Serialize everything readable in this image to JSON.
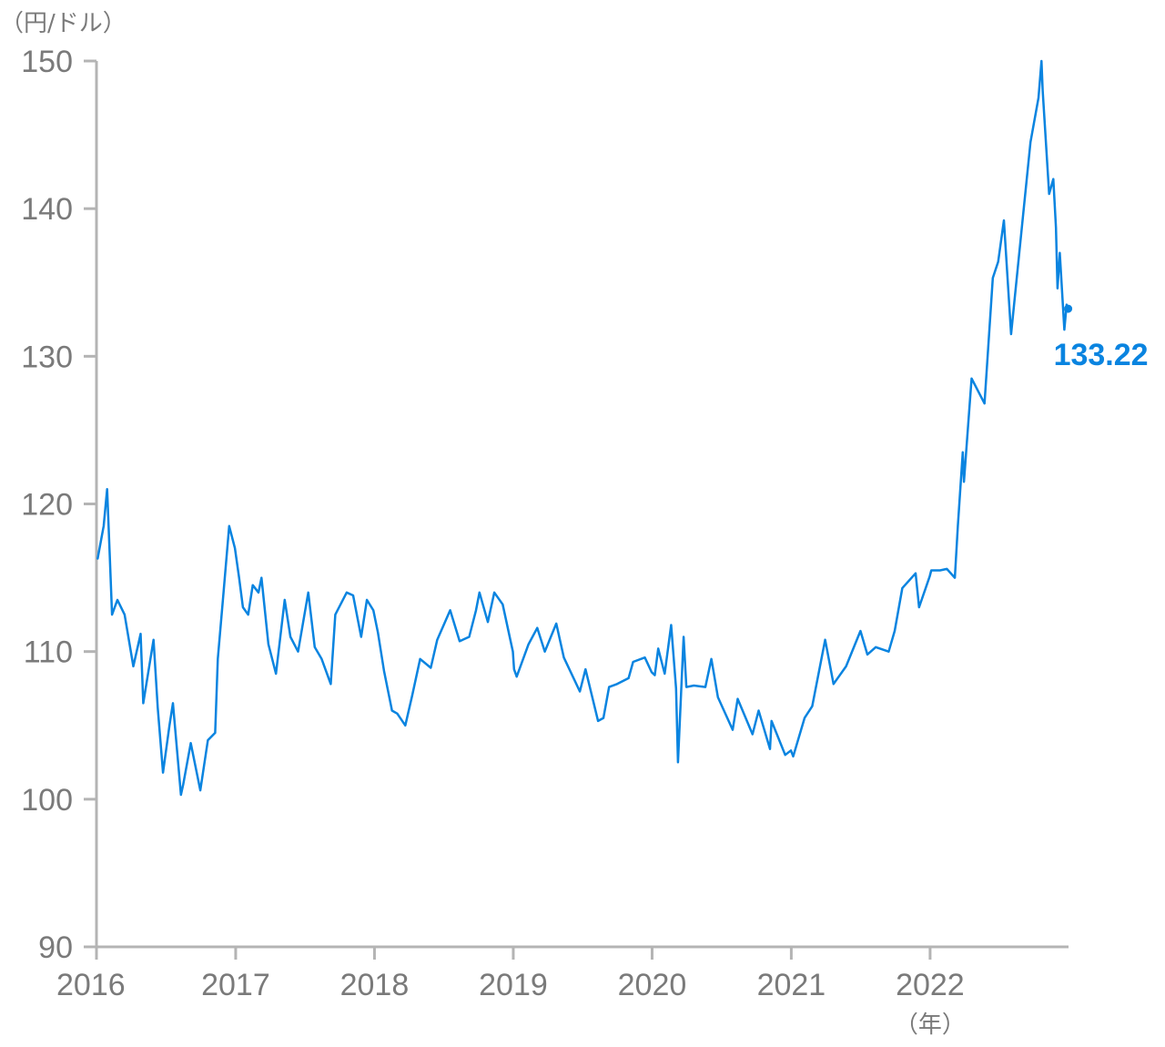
{
  "chart_data": {
    "type": "line",
    "title": "",
    "ylabel": "（円/ドル）",
    "xlabel": "（年）",
    "ylim": [
      90,
      150
    ],
    "yticks": [
      90,
      100,
      110,
      120,
      130,
      140,
      150
    ],
    "xlim": [
      "2016-01-01",
      "2022-12-31"
    ],
    "xticks": [
      {
        "date": "2016-01-01",
        "label": "2016"
      },
      {
        "date": "2017-01-01",
        "label": "2017"
      },
      {
        "date": "2018-01-01",
        "label": "2018"
      },
      {
        "date": "2019-01-01",
        "label": "2019"
      },
      {
        "date": "2020-01-01",
        "label": "2020"
      },
      {
        "date": "2021-01-01",
        "label": "2021"
      },
      {
        "date": "2022-01-01",
        "label": "2022"
      }
    ],
    "grid": false,
    "series": [
      {
        "color": "#0a84e0",
        "x": [
          "2016-01-04",
          "2016-01-20",
          "2016-01-29",
          "2016-02-05",
          "2016-02-11",
          "2016-02-25",
          "2016-03-15",
          "2016-04-07",
          "2016-04-26",
          "2016-05-03",
          "2016-05-30",
          "2016-06-10",
          "2016-06-24",
          "2016-07-11",
          "2016-07-20",
          "2016-08-10",
          "2016-08-16",
          "2016-09-05",
          "2016-09-30",
          "2016-10-20",
          "2016-11-08",
          "2016-11-15",
          "2016-11-30",
          "2016-12-15",
          "2016-12-30",
          "2017-01-10",
          "2017-01-20",
          "2017-02-03",
          "2017-02-15",
          "2017-03-02",
          "2017-03-10",
          "2017-03-28",
          "2017-04-17",
          "2017-05-10",
          "2017-05-25",
          "2017-06-14",
          "2017-07-11",
          "2017-07-28",
          "2017-08-15",
          "2017-09-08",
          "2017-09-20",
          "2017-10-20",
          "2017-11-06",
          "2017-11-27",
          "2017-12-12",
          "2017-12-29",
          "2018-01-10",
          "2018-01-26",
          "2018-02-16",
          "2018-03-02",
          "2018-03-23",
          "2018-04-10",
          "2018-05-01",
          "2018-05-29",
          "2018-06-15",
          "2018-07-19",
          "2018-08-13",
          "2018-09-07",
          "2018-09-25",
          "2018-10-04",
          "2018-10-26",
          "2018-11-12",
          "2018-12-04",
          "2018-12-31",
          "2019-01-03",
          "2019-01-10",
          "2019-02-10",
          "2019-03-05",
          "2019-03-25",
          "2019-04-24",
          "2019-05-14",
          "2019-06-25",
          "2019-07-10",
          "2019-08-12",
          "2019-08-26",
          "2019-09-10",
          "2019-10-01",
          "2019-10-31",
          "2019-11-12",
          "2019-12-13",
          "2019-12-31",
          "2020-01-08",
          "2020-01-17",
          "2020-02-03",
          "2020-02-20",
          "2020-03-04",
          "2020-03-09",
          "2020-03-24",
          "2020-03-31",
          "2020-04-20",
          "2020-05-20",
          "2020-06-05",
          "2020-06-22",
          "2020-07-31",
          "2020-08-13",
          "2020-09-21",
          "2020-10-07",
          "2020-11-06",
          "2020-11-10",
          "2020-12-16",
          "2020-12-31",
          "2021-01-06",
          "2021-02-05",
          "2021-02-25",
          "2021-03-31",
          "2021-04-22",
          "2021-05-25",
          "2021-07-02",
          "2021-07-20",
          "2021-08-11",
          "2021-09-14",
          "2021-09-30",
          "2021-10-20",
          "2021-11-24",
          "2021-12-03",
          "2021-12-31",
          "2022-01-04",
          "2022-01-27",
          "2022-02-14",
          "2022-03-07",
          "2022-03-15",
          "2022-03-28",
          "2022-03-31",
          "2022-04-20",
          "2022-05-24",
          "2022-06-15",
          "2022-06-29",
          "2022-07-14",
          "2022-08-02",
          "2022-08-31",
          "2022-09-22",
          "2022-10-13",
          "2022-10-21",
          "2022-10-24",
          "2022-11-10",
          "2022-11-21",
          "2022-11-28",
          "2022-12-02",
          "2022-12-08",
          "2022-12-20",
          "2022-12-26",
          "2022-12-30"
        ],
        "values": [
          116.3,
          118.5,
          121.0,
          116.5,
          112.5,
          113.5,
          112.5,
          109.0,
          111.2,
          106.5,
          110.8,
          106.2,
          101.8,
          105.0,
          106.5,
          100.3,
          101.0,
          103.8,
          100.6,
          104.0,
          104.5,
          109.5,
          114.0,
          118.5,
          117.0,
          115.0,
          113.0,
          112.5,
          114.5,
          114.0,
          115.0,
          110.5,
          108.5,
          113.5,
          111.0,
          110.0,
          114.0,
          110.3,
          109.5,
          107.8,
          112.5,
          114.0,
          113.8,
          111.0,
          113.5,
          112.8,
          111.3,
          108.7,
          106.0,
          105.8,
          105.0,
          107.0,
          109.5,
          108.9,
          110.8,
          112.8,
          110.7,
          111.0,
          112.8,
          114.0,
          112.0,
          114.0,
          113.2,
          110.0,
          108.8,
          108.3,
          110.5,
          111.6,
          110.0,
          111.9,
          109.6,
          107.3,
          108.8,
          105.3,
          105.5,
          107.6,
          107.8,
          108.2,
          109.3,
          109.6,
          108.6,
          108.4,
          110.2,
          108.5,
          111.8,
          107.5,
          102.5,
          111.0,
          107.6,
          107.7,
          107.6,
          109.5,
          106.9,
          104.7,
          106.8,
          104.4,
          106.0,
          103.4,
          105.3,
          103.0,
          103.3,
          102.9,
          105.5,
          106.3,
          110.8,
          107.8,
          109.0,
          111.4,
          109.8,
          110.3,
          110.0,
          111.4,
          114.3,
          115.3,
          113.0,
          115.1,
          115.5,
          115.5,
          115.6,
          115.0,
          118.5,
          123.5,
          121.5,
          128.5,
          126.8,
          135.3,
          136.4,
          139.2,
          131.5,
          138.9,
          144.5,
          147.5,
          150.0,
          148.0,
          141.0,
          142.0,
          138.7,
          134.6,
          137.0,
          131.8,
          133.5,
          133.22
        ],
        "end_label": "133.22"
      }
    ]
  }
}
